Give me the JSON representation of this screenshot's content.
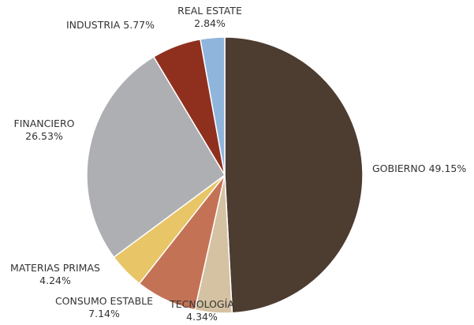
{
  "chart_data": {
    "type": "pie",
    "categories": [
      "GOBIERNO",
      "TECNOLOGÍA",
      "CONSUMO ESTABLE",
      "MATERIAS PRIMAS",
      "FINANCIERO",
      "INDUSTRIA",
      "REAL ESTATE"
    ],
    "values": [
      49.15,
      4.34,
      7.14,
      4.24,
      26.53,
      5.77,
      2.84
    ],
    "value_labels": [
      "49.15%",
      "4.34%",
      "7.14%",
      "4.24%",
      "26.53%",
      "5.77%",
      "2.84%"
    ],
    "colors": [
      "#4d3c30",
      "#d5c2a2",
      "#c47255",
      "#e8c566",
      "#aeafb2",
      "#8f301f",
      "#8fb5dd"
    ]
  }
}
